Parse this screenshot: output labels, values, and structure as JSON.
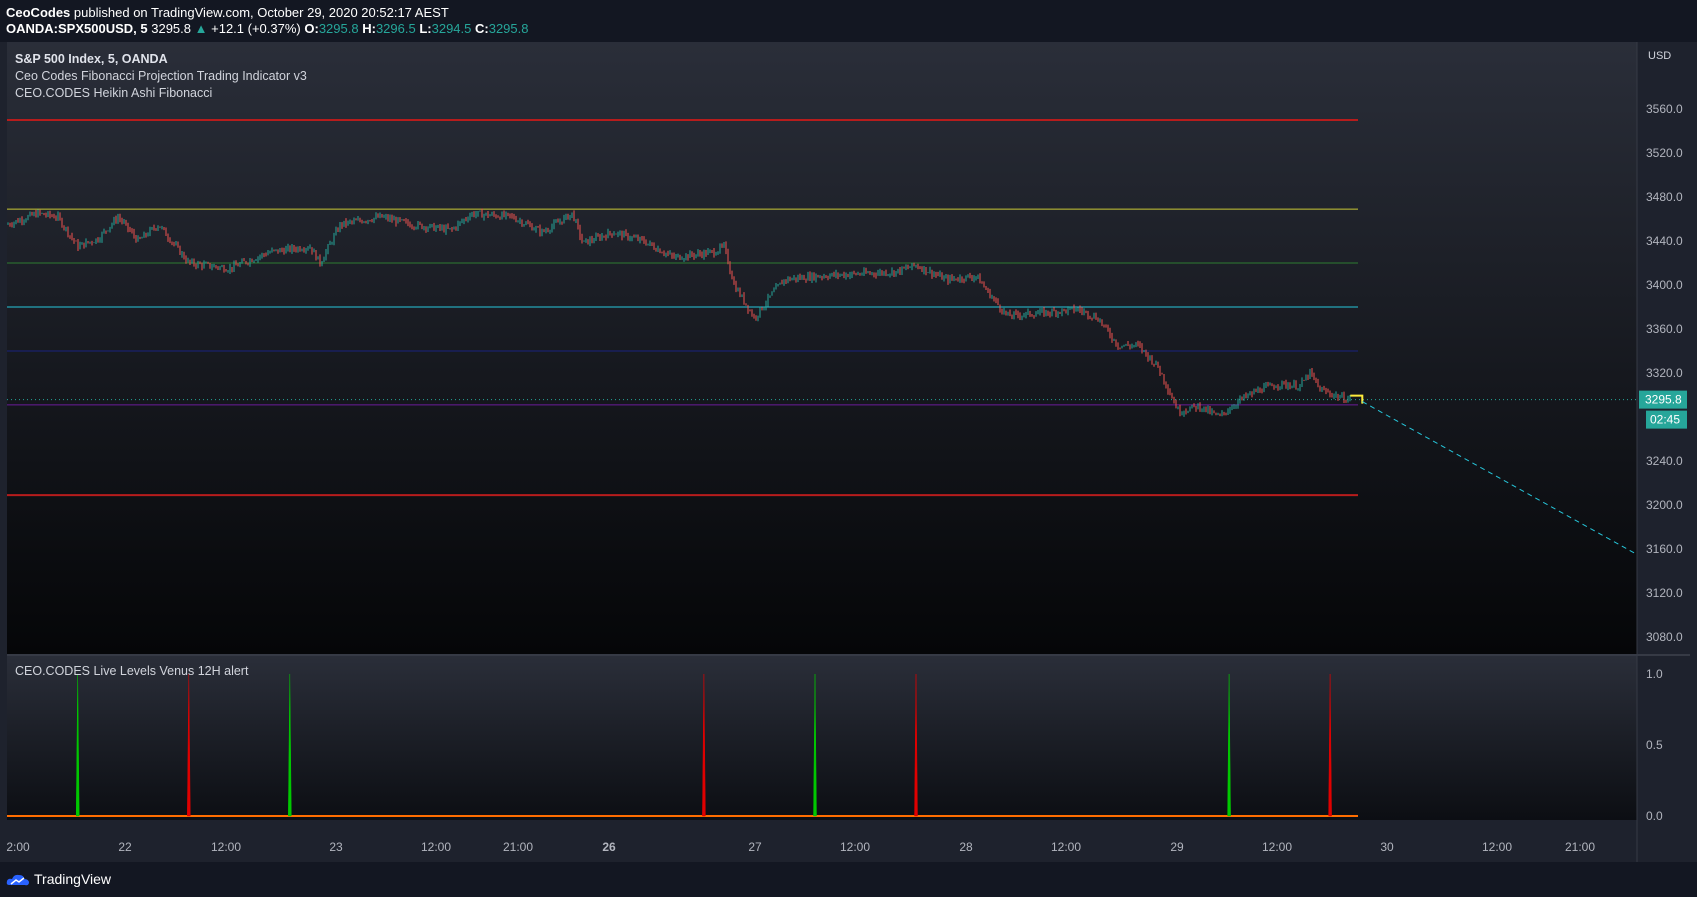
{
  "header": {
    "author": "CeoCodes",
    "published_text": "published on TradingView.com, October 29, 2020 20:52:17 AEST",
    "symbol": "OANDA:SPX500USD, 5",
    "last": "3295.8",
    "change_arrow": "▲",
    "change": "+12.1 (+0.37%)",
    "o_label": "O:",
    "o_value": "3295.8",
    "h_label": "H:",
    "h_value": "3296.5",
    "l_label": "L:",
    "l_value": "3294.5",
    "c_label": "C:",
    "c_value": "3295.8"
  },
  "legend": {
    "title": "S&P 500 Index, 5, OANDA",
    "indicator1": "Ceo Codes Fibonacci Projection Trading Indicator v3",
    "indicator2": "CEO.CODES Heikin Ashi Fibonacci",
    "indicator3": "CEO.CODES Live Levels Venus 12H alert"
  },
  "currency": "USD",
  "price_tag": "3295.8",
  "countdown_tag": "02:45",
  "brand": "TradingView",
  "colors": {
    "background": "#131722",
    "up": "#26a69a",
    "down": "#ef5350",
    "level_red": "#b71c1c",
    "level_yellow": "#c9c936",
    "level_green": "#2e7d32",
    "level_cyan": "#26c6da",
    "level_blue": "#1a237e",
    "level_purple": "#6a1b9a",
    "signal_green": "#00c800",
    "signal_red": "#e00000"
  },
  "chart_data": [
    {
      "type": "candlestick",
      "title": "S&P 500 Index, 5, OANDA",
      "ylim": [
        3055,
        3600
      ],
      "y_ticks": [
        "3560.0",
        "3520.0",
        "3480.0",
        "3440.0",
        "3400.0",
        "3360.0",
        "3320.0",
        "3280.0",
        "3240.0",
        "3200.0",
        "3160.0",
        "3120.0",
        "3080.0"
      ],
      "x_ticks": [
        "2:00",
        "22",
        "12:00",
        "23",
        "12:00",
        "21:00",
        "26",
        "27",
        "12:00",
        "28",
        "12:00",
        "29",
        "12:00",
        "30",
        "12:00",
        "21:00"
      ],
      "last_price": 3295.8,
      "fib_levels": [
        {
          "value": 3550,
          "color": "#b71c1c"
        },
        {
          "value": 3469,
          "color": "#c9c936"
        },
        {
          "value": 3420,
          "color": "#2e7d32"
        },
        {
          "value": 3380,
          "color": "#26c6da"
        },
        {
          "value": 3340,
          "color": "#1a237e"
        },
        {
          "value": 3291,
          "color": "#6a1b9a"
        },
        {
          "value": 3209,
          "color": "#b71c1c"
        }
      ],
      "price_path": [
        {
          "t": 0,
          "p": 3455
        },
        {
          "t": 3,
          "p": 3465
        },
        {
          "t": 5,
          "p": 3462
        },
        {
          "t": 7,
          "p": 3435
        },
        {
          "t": 9,
          "p": 3442
        },
        {
          "t": 11,
          "p": 3462
        },
        {
          "t": 13,
          "p": 3440
        },
        {
          "t": 15,
          "p": 3455
        },
        {
          "t": 18,
          "p": 3420
        },
        {
          "t": 22,
          "p": 3415
        },
        {
          "t": 26,
          "p": 3430
        },
        {
          "t": 30,
          "p": 3435
        },
        {
          "t": 31,
          "p": 3420
        },
        {
          "t": 33,
          "p": 3455
        },
        {
          "t": 37,
          "p": 3462
        },
        {
          "t": 40,
          "p": 3455
        },
        {
          "t": 44,
          "p": 3450
        },
        {
          "t": 46,
          "p": 3465
        },
        {
          "t": 50,
          "p": 3462
        },
        {
          "t": 53,
          "p": 3448
        },
        {
          "t": 56,
          "p": 3465
        },
        {
          "t": 57,
          "p": 3438
        },
        {
          "t": 60,
          "p": 3448
        },
        {
          "t": 63,
          "p": 3440
        },
        {
          "t": 66,
          "p": 3425
        },
        {
          "t": 70,
          "p": 3430
        },
        {
          "t": 71,
          "p": 3435
        },
        {
          "t": 72,
          "p": 3400
        },
        {
          "t": 74,
          "p": 3370
        },
        {
          "t": 76,
          "p": 3395
        },
        {
          "t": 77,
          "p": 3405
        },
        {
          "t": 80,
          "p": 3408
        },
        {
          "t": 84,
          "p": 3410
        },
        {
          "t": 88,
          "p": 3412
        },
        {
          "t": 90,
          "p": 3418
        },
        {
          "t": 93,
          "p": 3405
        },
        {
          "t": 96,
          "p": 3408
        },
        {
          "t": 97,
          "p": 3395
        },
        {
          "t": 99,
          "p": 3372
        },
        {
          "t": 103,
          "p": 3375
        },
        {
          "t": 106,
          "p": 3378
        },
        {
          "t": 108,
          "p": 3370
        },
        {
          "t": 110,
          "p": 3345
        },
        {
          "t": 112,
          "p": 3345
        },
        {
          "t": 114,
          "p": 3325
        },
        {
          "t": 116,
          "p": 3285
        },
        {
          "t": 118,
          "p": 3290
        },
        {
          "t": 120,
          "p": 3280
        },
        {
          "t": 122,
          "p": 3295
        },
        {
          "t": 124,
          "p": 3305
        },
        {
          "t": 126,
          "p": 3310
        },
        {
          "t": 128,
          "p": 3308
        },
        {
          "t": 129,
          "p": 3320
        },
        {
          "t": 130,
          "p": 3305
        },
        {
          "t": 132,
          "p": 3298
        },
        {
          "t": 133,
          "p": 3295.8
        }
      ],
      "projection": {
        "from": 3295.8,
        "to": 3155
      }
    },
    {
      "type": "spike",
      "title": "CEO.CODES Live Levels Venus 12H alert",
      "ylim": [
        0,
        1
      ],
      "y_ticks": [
        "1.0",
        "0.5",
        "0.0"
      ],
      "signals": [
        {
          "t": 7,
          "value": 1,
          "kind": "buy"
        },
        {
          "t": 18,
          "value": 1,
          "kind": "sell"
        },
        {
          "t": 28,
          "value": 1,
          "kind": "buy"
        },
        {
          "t": 69,
          "value": 1,
          "kind": "sell"
        },
        {
          "t": 80,
          "value": 1,
          "kind": "buy"
        },
        {
          "t": 90,
          "value": 1,
          "kind": "sell"
        },
        {
          "t": 121,
          "value": 1,
          "kind": "buy"
        },
        {
          "t": 131,
          "value": 1,
          "kind": "sell"
        }
      ]
    }
  ]
}
